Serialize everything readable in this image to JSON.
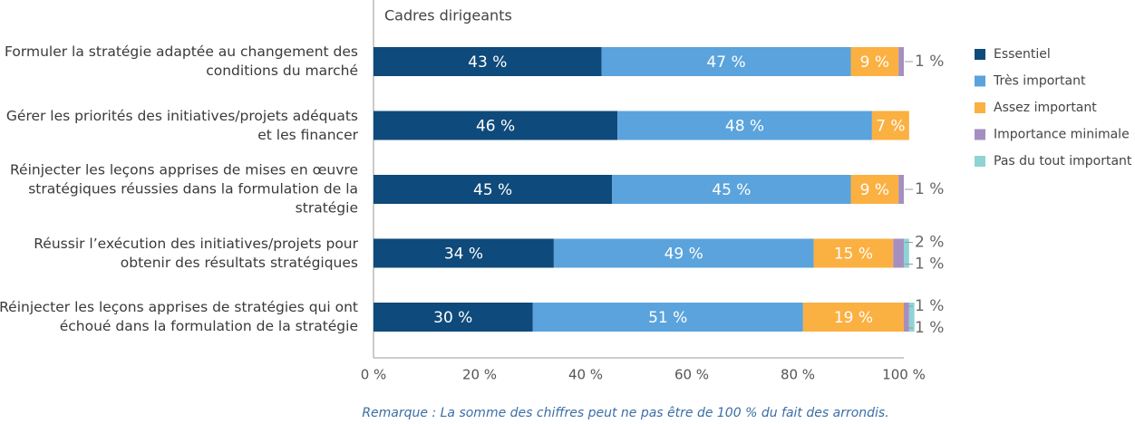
{
  "chart_data": {
    "type": "stacked-bar-horizontal",
    "subtitle": "Cadres dirigeants",
    "note": "Remarque : La somme des chiffres peut ne pas être de 100 % du fait des arrondis.",
    "categories": [
      "Formuler la stratégie adaptée au changement des conditions du marché",
      "Gérer les priorités des initiatives/projets adéquats et les financer",
      "Réinjecter les leçons apprises de mises en œuvre stratégiques réussies dans la formulation de la stratégie",
      "Réussir l’exécution des initiatives/projets pour obtenir des résultats stratégiques",
      "Réinjecter les leçons apprises de stratégies qui ont échoué dans la formulation de la stratégie"
    ],
    "series": [
      {
        "name": "Essentiel",
        "color": "#0e4a7b",
        "values": [
          43,
          46,
          45,
          34,
          30
        ],
        "value_labels": [
          "43 %",
          "46 %",
          "45 %",
          "34 %",
          "30 %"
        ]
      },
      {
        "name": "Très important",
        "color": "#5aa3dc",
        "values": [
          47,
          48,
          45,
          49,
          51
        ],
        "value_labels": [
          "47 %",
          "48 %",
          "45 %",
          "49 %",
          "51 %"
        ]
      },
      {
        "name": "Assez important",
        "color": "#fbb042",
        "values": [
          9,
          7,
          9,
          15,
          19
        ],
        "value_labels": [
          "9 %",
          "7 %",
          "9 %",
          "15 %",
          "19 %"
        ]
      },
      {
        "name": "Importance minimale",
        "color": "#a58fc1",
        "values": [
          1,
          null,
          1,
          2,
          1
        ],
        "value_labels": [
          "1 %",
          null,
          "1 %",
          "2 %",
          "1 %"
        ]
      },
      {
        "name": "Pas du tout important",
        "color": "#8ed4d4",
        "values": [
          null,
          null,
          null,
          1,
          1
        ],
        "value_labels": [
          null,
          null,
          null,
          "1 %",
          "1 %"
        ]
      }
    ],
    "xlim": [
      0,
      100
    ],
    "xticks": [
      {
        "value": 0,
        "label": "0 %"
      },
      {
        "value": 20,
        "label": "20 %"
      },
      {
        "value": 40,
        "label": "40 %"
      },
      {
        "value": 60,
        "label": "60 %"
      },
      {
        "value": 80,
        "label": "80 %"
      },
      {
        "value": 100,
        "label": "100 %"
      }
    ]
  }
}
